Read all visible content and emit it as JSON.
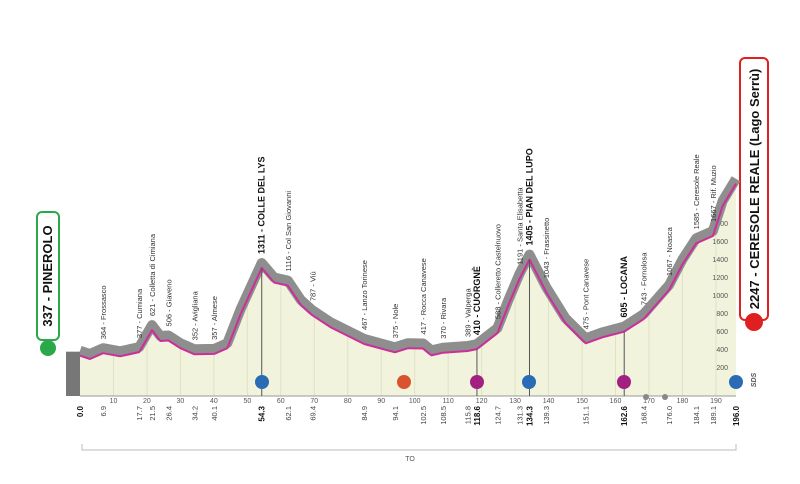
{
  "chart_data": {
    "type": "area",
    "xlim": [
      0,
      196
    ],
    "xticks": [
      10,
      20,
      30,
      40,
      50,
      60,
      70,
      80,
      90,
      100,
      110,
      120,
      130,
      140,
      150,
      160,
      170,
      180,
      190
    ],
    "ylim": [
      0,
      2400
    ],
    "yticks": [
      200,
      400,
      600,
      800,
      1000,
      1200,
      1400,
      1600,
      1800
    ],
    "x": [
      0,
      3,
      6.9,
      12,
      17.7,
      21.5,
      24,
      26.4,
      30,
      34.2,
      40.1,
      44,
      48,
      54.3,
      58,
      62.1,
      66,
      69.4,
      75,
      84.9,
      94.1,
      98,
      102.5,
      105,
      108.5,
      115.8,
      118.6,
      124.7,
      128,
      131.3,
      134.3,
      139.3,
      145,
      151.1,
      156,
      162.6,
      168.4,
      176,
      180,
      184.1,
      189.1,
      192,
      196
    ],
    "values": [
      337,
      300,
      364,
      330,
      377,
      621,
      500,
      506,
      420,
      352,
      357,
      420,
      800,
      1311,
      1150,
      1116,
      900,
      787,
      650,
      467,
      375,
      420,
      417,
      340,
      370,
      389,
      410,
      588,
      900,
      1191,
      1405,
      1043,
      700,
      475,
      540,
      605,
      743,
      1067,
      1350,
      1585,
      1667,
      2000,
      2247
    ],
    "color": "#f1f3dc",
    "band_color": "#8e8e8e",
    "line_color": "#cc2e9b",
    "start": {
      "km": {
        "value": 0,
        "label": "0.0"
      },
      "label": "337 - PINEROLO"
    },
    "finish": {
      "km": {
        "value": 196,
        "label": "196.0"
      },
      "label": "2247 - CERESOLE REALE (Lago Serrù)"
    },
    "waypoints": [
      {
        "km": 6.9,
        "label": "364 - Frossasco"
      },
      {
        "km": 17.7,
        "label": "377 - Cumiana"
      },
      {
        "km": 21.5,
        "label": "621 - Colletta di Cimiana"
      },
      {
        "km": 26.4,
        "label": "506 - Giaveno"
      },
      {
        "km": 34.2,
        "label": "352 - Avigliana"
      },
      {
        "km": 40.1,
        "label": "357 - Almese"
      },
      {
        "km": 54.3,
        "label": "1311 - COLLE DEL LYS",
        "bold": true
      },
      {
        "km": 62.1,
        "label": "1116 - Col San Giovanni"
      },
      {
        "km": 69.4,
        "label": "787 - Viù"
      },
      {
        "km": 84.9,
        "label": "467 - Lanzo Torinese"
      },
      {
        "km": 94.1,
        "label": "375 - Nole"
      },
      {
        "km": 102.5,
        "label": "417 - Rocca Canavese"
      },
      {
        "km": 108.5,
        "label": "370 - Rivara"
      },
      {
        "km": 115.8,
        "label": "389 - Valperga"
      },
      {
        "km": 118.6,
        "label": "410 - CUORGNÈ",
        "bold": true
      },
      {
        "km": 124.7,
        "label": "588 - Colleretto Castelnuovo"
      },
      {
        "km": 131.3,
        "label": "1191 - Santa Elisabetta"
      },
      {
        "km": 134.3,
        "label": "1405 - PIAN DEL LUPO",
        "bold": true
      },
      {
        "km": 139.3,
        "label": "1043 - Frassinetto"
      },
      {
        "km": 151.1,
        "label": "475 - Pont Canavese"
      },
      {
        "km": 162.6,
        "label": "605 - LOCANA",
        "bold": true
      },
      {
        "km": 168.4,
        "label": "743 - Fornolosa"
      },
      {
        "km": {
          "value": 176,
          "label": "176.0"
        },
        "label": "1067 - Noasca"
      },
      {
        "km": 184.1,
        "label": "1585 - Ceresole Reale"
      },
      {
        "km": 189.1,
        "label": "1667 - Rif. Muzio"
      }
    ],
    "province": "TO",
    "logo": "SDS"
  }
}
